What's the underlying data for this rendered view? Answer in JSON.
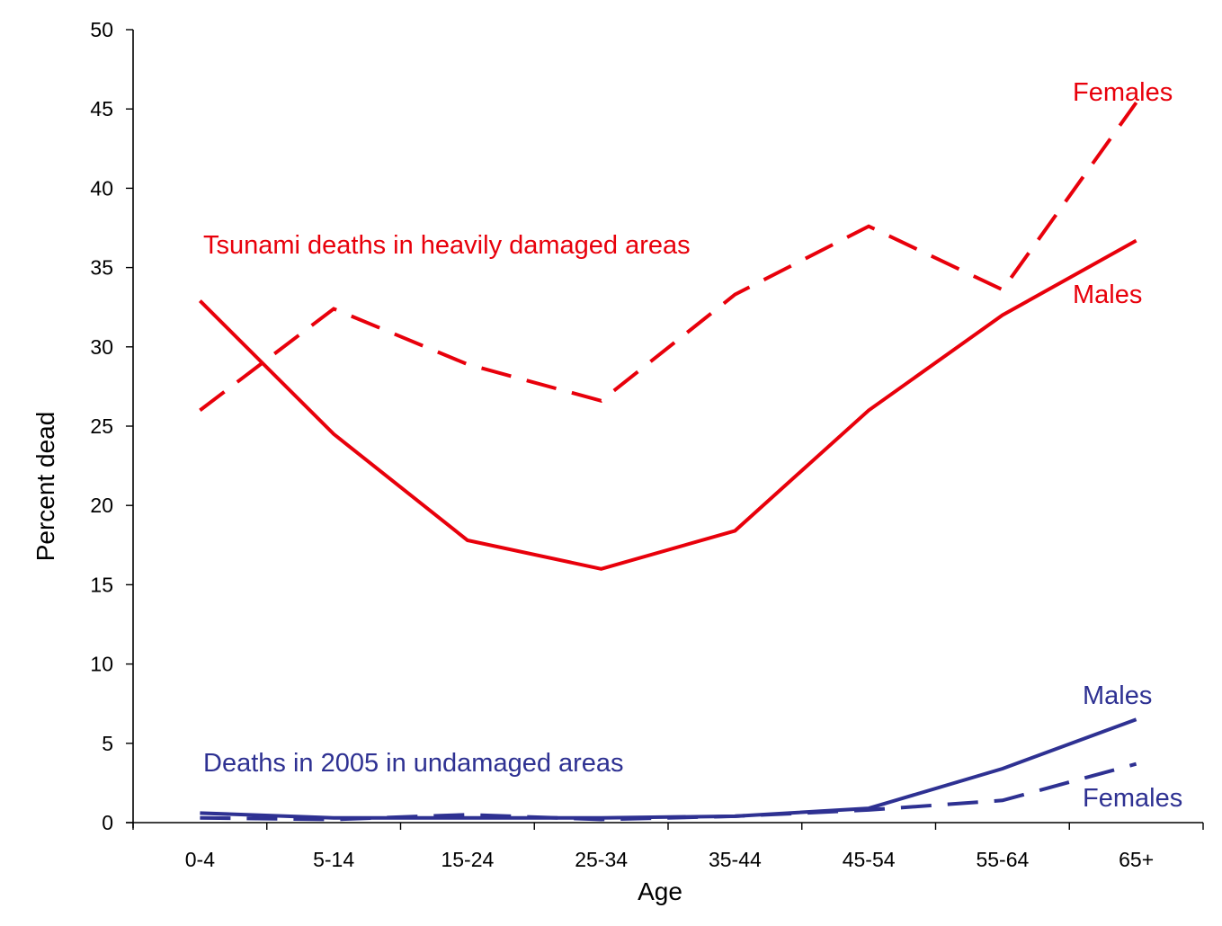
{
  "chart_data": {
    "type": "line",
    "title": "",
    "xlabel": "Age",
    "ylabel": "Percent dead",
    "ylim": [
      0,
      50
    ],
    "yticks": [
      0,
      5,
      10,
      15,
      20,
      25,
      30,
      35,
      40,
      45,
      50
    ],
    "categories": [
      "0-4",
      "5-14",
      "15-24",
      "25-34",
      "35-44",
      "45-54",
      "55-64",
      "65+"
    ],
    "grid": false,
    "series": [
      {
        "name": "Tsunami Males",
        "group": "Tsunami deaths in heavily damaged areas",
        "color": "#e8000b",
        "dash": "solid",
        "values": [
          32.9,
          24.5,
          17.8,
          16.0,
          18.4,
          26.0,
          32.0,
          36.7
        ]
      },
      {
        "name": "Tsunami Females",
        "group": "Tsunami deaths in heavily damaged areas",
        "color": "#e8000b",
        "dash": "dashed",
        "values": [
          26.0,
          32.4,
          28.9,
          26.6,
          33.3,
          37.6,
          33.6,
          45.4
        ]
      },
      {
        "name": "2005 Males",
        "group": "Deaths in 2005 in undamaged areas",
        "color": "#2e3192",
        "dash": "solid",
        "values": [
          0.6,
          0.3,
          0.3,
          0.3,
          0.4,
          0.9,
          3.4,
          6.5
        ]
      },
      {
        "name": "2005 Females",
        "group": "Deaths in 2005 in undamaged areas",
        "color": "#2e3192",
        "dash": "dashed",
        "values": [
          0.3,
          0.2,
          0.5,
          0.2,
          0.4,
          0.8,
          1.4,
          3.7
        ]
      }
    ],
    "annotations": [
      {
        "text": "Tsunami deaths in heavily damaged areas",
        "color": "#e8000b"
      },
      {
        "text": "Females",
        "color": "#e8000b"
      },
      {
        "text": "Males",
        "color": "#e8000b"
      },
      {
        "text": "Males",
        "color": "#2e3192"
      },
      {
        "text": "Deaths in 2005 in undamaged areas",
        "color": "#2e3192"
      },
      {
        "text": "Females",
        "color": "#2e3192"
      }
    ]
  }
}
